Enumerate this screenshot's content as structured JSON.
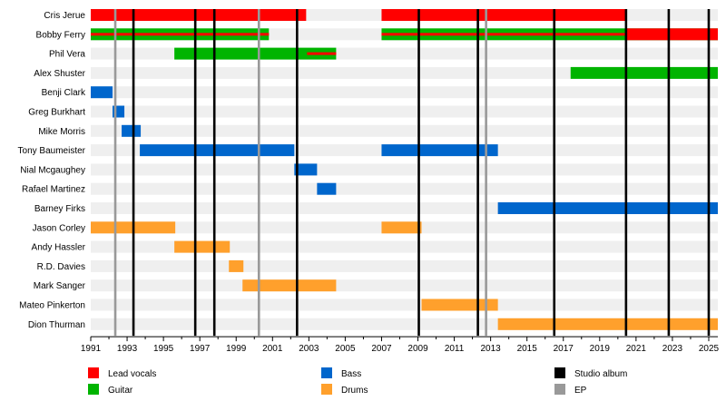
{
  "chart_data": {
    "type": "timeline",
    "x_range": [
      1991,
      2025.5
    ],
    "x_ticks": [
      1991,
      1993,
      1995,
      1997,
      1999,
      2001,
      2003,
      2005,
      2007,
      2009,
      2011,
      2013,
      2015,
      2017,
      2019,
      2021,
      2023,
      2025
    ],
    "members": [
      "Cris Jerue",
      "Bobby Ferry",
      "Phil Vera",
      "Alex Shuster",
      "Benji Clark",
      "Greg Burkhart",
      "Mike Morris",
      "Tony Baumeister",
      "Nial Mcgaughey",
      "Rafael Martinez",
      "Barney Firks",
      "Jason Corley",
      "Andy Hassler",
      "R.D. Davies",
      "Mark Sanger",
      "Mateo Pinkerton",
      "Dion Thurman"
    ],
    "roles": {
      "vocals": {
        "label": "Lead vocals",
        "color": "#ff0000"
      },
      "guitar": {
        "label": "Guitar",
        "color": "#00b400"
      },
      "bass": {
        "label": "Bass",
        "color": "#0066cc"
      },
      "drums": {
        "label": "Drums",
        "color": "#ffa02c"
      }
    },
    "bars": [
      {
        "member": 0,
        "role": "vocals",
        "start": 1991,
        "end": 2002.85
      },
      {
        "member": 0,
        "role": "vocals",
        "start": 2007,
        "end": 2020.5
      },
      {
        "member": 1,
        "role": "guitar",
        "start": 1991,
        "end": 2000.8
      },
      {
        "member": 1,
        "role": "guitar",
        "start": 2007,
        "end": 2025.5
      },
      {
        "member": 1,
        "role": "vocals",
        "start": 1991,
        "end": 2000.8,
        "accent": true
      },
      {
        "member": 1,
        "role": "vocals",
        "start": 2007,
        "end": 2020.5,
        "accent": true
      },
      {
        "member": 1,
        "role": "vocals",
        "start": 2020.5,
        "end": 2025.5
      },
      {
        "member": 2,
        "role": "guitar",
        "start": 1995.6,
        "end": 2004.5
      },
      {
        "member": 2,
        "role": "vocals",
        "start": 2002.9,
        "end": 2004.5,
        "accent": true
      },
      {
        "member": 3,
        "role": "guitar",
        "start": 2017.4,
        "end": 2025.5
      },
      {
        "member": 4,
        "role": "bass",
        "start": 1991,
        "end": 1992.2
      },
      {
        "member": 5,
        "role": "bass",
        "start": 1992.2,
        "end": 1992.85
      },
      {
        "member": 6,
        "role": "bass",
        "start": 1992.7,
        "end": 1993.75
      },
      {
        "member": 7,
        "role": "bass",
        "start": 1993.7,
        "end": 2002.2
      },
      {
        "member": 7,
        "role": "bass",
        "start": 2007,
        "end": 2013.4
      },
      {
        "member": 8,
        "role": "bass",
        "start": 2002.2,
        "end": 2003.45
      },
      {
        "member": 9,
        "role": "bass",
        "start": 2003.45,
        "end": 2004.5
      },
      {
        "member": 10,
        "role": "bass",
        "start": 2013.4,
        "end": 2025.5
      },
      {
        "member": 11,
        "role": "drums",
        "start": 1991,
        "end": 1995.65
      },
      {
        "member": 11,
        "role": "drums",
        "start": 2007,
        "end": 2009.2
      },
      {
        "member": 12,
        "role": "drums",
        "start": 1995.6,
        "end": 1998.65
      },
      {
        "member": 13,
        "role": "drums",
        "start": 1998.6,
        "end": 1999.4
      },
      {
        "member": 14,
        "role": "drums",
        "start": 1999.35,
        "end": 2004.5
      },
      {
        "member": 15,
        "role": "drums",
        "start": 2009.2,
        "end": 2013.4
      },
      {
        "member": 16,
        "role": "drums",
        "start": 2013.4,
        "end": 2025.5
      }
    ],
    "releases": [
      {
        "type": "studio",
        "year": 1993.35
      },
      {
        "type": "studio",
        "year": 1996.75
      },
      {
        "type": "studio",
        "year": 1997.8
      },
      {
        "type": "studio",
        "year": 2002.35
      },
      {
        "type": "studio",
        "year": 2009.05
      },
      {
        "type": "studio",
        "year": 2012.3
      },
      {
        "type": "studio",
        "year": 2016.5
      },
      {
        "type": "studio",
        "year": 2020.45
      },
      {
        "type": "studio",
        "year": 2022.8
      },
      {
        "type": "studio",
        "year": 2025
      },
      {
        "type": "ep",
        "year": 1992.35
      },
      {
        "type": "ep",
        "year": 2000.25
      },
      {
        "type": "ep",
        "year": 2012.75
      }
    ],
    "legend": {
      "items": [
        {
          "label": "Lead vocals",
          "color": "#ff0000"
        },
        {
          "label": "Guitar",
          "color": "#00b400"
        },
        {
          "label": "Bass",
          "color": "#0066cc"
        },
        {
          "label": "Drums",
          "color": "#ffa02c"
        },
        {
          "label": "Studio album",
          "color": "#000000"
        },
        {
          "label": "EP",
          "color": "#999999"
        }
      ],
      "placement": "bottom"
    },
    "colors": {
      "row_stripe": "#efefef",
      "studio_line": "#000000",
      "ep_line": "#999999"
    }
  }
}
